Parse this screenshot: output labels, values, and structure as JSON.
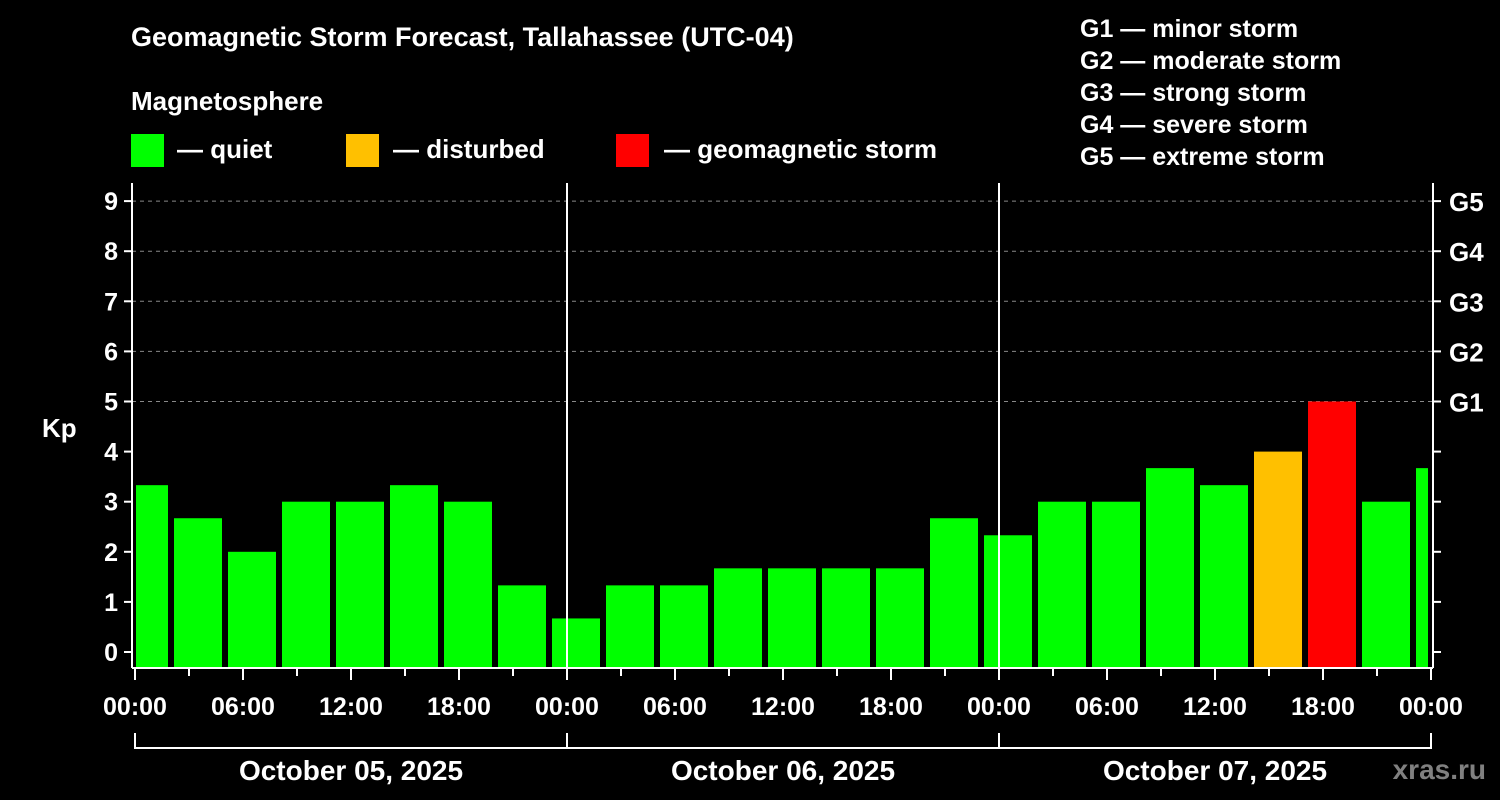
{
  "chart_data": {
    "type": "bar",
    "title": "Geomagnetic Storm Forecast, Tallahassee (UTC-04)",
    "subtitle": "Magnetosphere",
    "ylabel": "Kp",
    "ylim": [
      0,
      9
    ],
    "yticks": [
      "0",
      "1",
      "2",
      "3",
      "4",
      "5",
      "6",
      "7",
      "8",
      "9"
    ],
    "right_ticks": [
      {
        "kp": 5,
        "label": "G1"
      },
      {
        "kp": 6,
        "label": "G2"
      },
      {
        "kp": 7,
        "label": "G3"
      },
      {
        "kp": 8,
        "label": "G4"
      },
      {
        "kp": 9,
        "label": "G5"
      }
    ],
    "xticks": [
      "00:00",
      "06:00",
      "12:00",
      "18:00",
      "00:00",
      "06:00",
      "12:00",
      "18:00",
      "00:00",
      "06:00",
      "12:00",
      "18:00",
      "00:00"
    ],
    "dates": [
      "October 05, 2025",
      "October 06, 2025",
      "October 07, 2025"
    ],
    "grid": true,
    "legend": [
      {
        "label": "— quiet",
        "color": "#00ff00"
      },
      {
        "label": "— disturbed",
        "color": "#ffc000"
      },
      {
        "label": "— geomagnetic storm",
        "color": "#ff0000"
      }
    ],
    "scale": [
      "G1 — minor storm",
      "G2 — moderate storm",
      "G3 — strong storm",
      "G4 — severe storm",
      "G5 — extreme storm"
    ],
    "bars": [
      {
        "start_h": 0,
        "end_h": 2,
        "kp": 3.33,
        "status": "quiet"
      },
      {
        "start_h": 2,
        "end_h": 5,
        "kp": 2.67,
        "status": "quiet"
      },
      {
        "start_h": 5,
        "end_h": 8,
        "kp": 2.0,
        "status": "quiet"
      },
      {
        "start_h": 8,
        "end_h": 11,
        "kp": 3.0,
        "status": "quiet"
      },
      {
        "start_h": 11,
        "end_h": 14,
        "kp": 3.0,
        "status": "quiet"
      },
      {
        "start_h": 14,
        "end_h": 17,
        "kp": 3.33,
        "status": "quiet"
      },
      {
        "start_h": 17,
        "end_h": 20,
        "kp": 3.0,
        "status": "quiet"
      },
      {
        "start_h": 20,
        "end_h": 23,
        "kp": 1.33,
        "status": "quiet"
      },
      {
        "start_h": 23,
        "end_h": 26,
        "kp": 0.67,
        "status": "quiet"
      },
      {
        "start_h": 26,
        "end_h": 29,
        "kp": 1.33,
        "status": "quiet"
      },
      {
        "start_h": 29,
        "end_h": 32,
        "kp": 1.33,
        "status": "quiet"
      },
      {
        "start_h": 32,
        "end_h": 35,
        "kp": 1.67,
        "status": "quiet"
      },
      {
        "start_h": 35,
        "end_h": 38,
        "kp": 1.67,
        "status": "quiet"
      },
      {
        "start_h": 38,
        "end_h": 41,
        "kp": 1.67,
        "status": "quiet"
      },
      {
        "start_h": 41,
        "end_h": 44,
        "kp": 1.67,
        "status": "quiet"
      },
      {
        "start_h": 44,
        "end_h": 47,
        "kp": 2.67,
        "status": "quiet"
      },
      {
        "start_h": 47,
        "end_h": 50,
        "kp": 2.33,
        "status": "quiet"
      },
      {
        "start_h": 50,
        "end_h": 53,
        "kp": 3.0,
        "status": "quiet"
      },
      {
        "start_h": 53,
        "end_h": 56,
        "kp": 3.0,
        "status": "quiet"
      },
      {
        "start_h": 56,
        "end_h": 59,
        "kp": 3.67,
        "status": "quiet"
      },
      {
        "start_h": 59,
        "end_h": 62,
        "kp": 3.33,
        "status": "quiet"
      },
      {
        "start_h": 62,
        "end_h": 65,
        "kp": 4.0,
        "status": "disturbed"
      },
      {
        "start_h": 65,
        "end_h": 68,
        "kp": 5.0,
        "status": "storm"
      },
      {
        "start_h": 68,
        "end_h": 71,
        "kp": 3.0,
        "status": "quiet"
      },
      {
        "start_h": 71,
        "end_h": 72,
        "kp": 3.67,
        "status": "quiet"
      }
    ],
    "colors": {
      "quiet": "#00ff00",
      "disturbed": "#ffc000",
      "storm": "#ff0000"
    }
  },
  "watermark": "xras.ru"
}
